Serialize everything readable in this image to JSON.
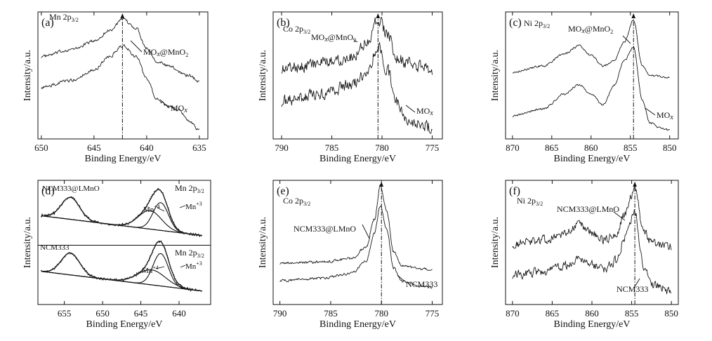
{
  "chart_data": [
    {
      "id": "a",
      "type": "line",
      "panel_label": "(a)",
      "title": "Mn 2p",
      "title_sub": "3/2",
      "xlabel": "Binding Energy/eV",
      "ylabel": "Intensity/a.u.",
      "xlim": [
        650,
        635
      ],
      "ylim": [
        0,
        1
      ],
      "xticks": [
        650,
        645,
        640,
        635
      ],
      "ref_line": 642.3,
      "series": [
        {
          "name": "MOx@MnO2",
          "label": "MO",
          "label_italic": "x",
          "label_tail": "@MnO",
          "label_sub": "2",
          "noise": 0.012,
          "base": [
            [
              650,
              0.66
            ],
            [
              647,
              0.72
            ],
            [
              645,
              0.79
            ],
            [
              643.5,
              0.88
            ],
            [
              642.3,
              0.97
            ],
            [
              641,
              0.9
            ],
            [
              640,
              0.73
            ],
            [
              639,
              0.62
            ],
            [
              638,
              0.58
            ],
            [
              636,
              0.5
            ],
            [
              635,
              0.45
            ]
          ]
        },
        {
          "name": "MOx",
          "label": "MO",
          "label_italic": "x",
          "label_tail": "",
          "label_sub": "",
          "noise": 0.012,
          "base": [
            [
              650,
              0.4
            ],
            [
              647,
              0.46
            ],
            [
              645,
              0.55
            ],
            [
              643.5,
              0.66
            ],
            [
              642.3,
              0.75
            ],
            [
              641,
              0.66
            ],
            [
              640,
              0.47
            ],
            [
              639,
              0.3
            ],
            [
              638,
              0.24
            ],
            [
              637,
              0.21
            ],
            [
              636,
              0.12
            ],
            [
              635,
              0.04
            ]
          ]
        }
      ]
    },
    {
      "id": "b",
      "type": "line",
      "panel_label": "(b)",
      "title": "Co 2p",
      "title_sub": "3/2",
      "xlabel": "Binding Energy/eV",
      "ylabel": "Intensity/a.u.",
      "xlim": [
        790,
        775
      ],
      "ylim": [
        0,
        1
      ],
      "xticks": [
        790,
        785,
        780,
        775
      ],
      "ref_line": 780.4,
      "series": [
        {
          "name": "MOx@MnO2",
          "label": "MO",
          "label_italic": "x",
          "label_tail": "@MnO",
          "label_sub": "2",
          "noise": 0.045,
          "base": [
            [
              790,
              0.56
            ],
            [
              786,
              0.6
            ],
            [
              783,
              0.66
            ],
            [
              781.5,
              0.78
            ],
            [
              780.4,
              0.98
            ],
            [
              779.5,
              0.85
            ],
            [
              778.5,
              0.65
            ],
            [
              777.5,
              0.6
            ],
            [
              776,
              0.57
            ],
            [
              775,
              0.55
            ]
          ]
        },
        {
          "name": "MOx",
          "label": "MO",
          "label_italic": "x",
          "label_tail": "",
          "label_sub": "",
          "noise": 0.045,
          "base": [
            [
              790,
              0.28
            ],
            [
              786,
              0.34
            ],
            [
              783,
              0.42
            ],
            [
              781.5,
              0.52
            ],
            [
              780.4,
              0.75
            ],
            [
              779.5,
              0.55
            ],
            [
              778.5,
              0.28
            ],
            [
              777.5,
              0.13
            ],
            [
              776,
              0.08
            ],
            [
              775,
              0.06
            ]
          ]
        }
      ]
    },
    {
      "id": "c",
      "type": "line",
      "panel_label": "(c)",
      "title": "Ni 2p",
      "title_sub": "3/2",
      "xlabel": "Binding Energy/eV",
      "ylabel": "Intensity/a.u.",
      "xlim": [
        870,
        850
      ],
      "ylim": [
        0,
        1
      ],
      "xticks": [
        870,
        865,
        860,
        855,
        850
      ],
      "ref_line": 854.6,
      "series": [
        {
          "name": "MOx@MnO2",
          "label": "MO",
          "label_italic": "x",
          "label_tail": "@MnO",
          "label_sub": "2",
          "noise": 0.008,
          "base": [
            [
              870,
              0.53
            ],
            [
              866,
              0.58
            ],
            [
              863.5,
              0.68
            ],
            [
              861.5,
              0.75
            ],
            [
              860,
              0.67
            ],
            [
              858.5,
              0.58
            ],
            [
              857,
              0.63
            ],
            [
              855.8,
              0.78
            ],
            [
              854.6,
              0.97
            ],
            [
              853.5,
              0.58
            ],
            [
              852.5,
              0.5
            ],
            [
              850,
              0.48
            ]
          ]
        },
        {
          "name": "MOx",
          "label": "MO",
          "label_italic": "x",
          "label_tail": "",
          "label_sub": "",
          "noise": 0.008,
          "base": [
            [
              870,
              0.16
            ],
            [
              866,
              0.22
            ],
            [
              863.5,
              0.34
            ],
            [
              861.5,
              0.42
            ],
            [
              860,
              0.34
            ],
            [
              858.5,
              0.25
            ],
            [
              857,
              0.42
            ],
            [
              855.8,
              0.62
            ],
            [
              854.6,
              0.74
            ],
            [
              853.5,
              0.3
            ],
            [
              852.5,
              0.1
            ],
            [
              851,
              0.05
            ],
            [
              850,
              0.04
            ]
          ]
        }
      ]
    },
    {
      "id": "d",
      "type": "line",
      "panel_label": "(d)",
      "title": "Mn 2p",
      "title_sub": "3/2",
      "xlabel": "Binding Energy/eV",
      "ylabel": "Intensity/a.u.",
      "xlim": [
        658,
        637
      ],
      "ylim": [
        0,
        1
      ],
      "xticks": [
        655,
        650,
        645,
        640
      ],
      "samples": [
        {
          "name": "NCM333@LMnO",
          "offset": 0.53,
          "bg_start": 0.2,
          "bg_end": 0.03,
          "peak1": {
            "center": 654.2,
            "height": 0.19,
            "width": 1.2
          },
          "mn4": {
            "center": 643.8,
            "height": 0.16,
            "width": 1.5
          },
          "mn3": {
            "center": 642.4,
            "height": 0.24,
            "width": 1.0
          }
        },
        {
          "name": "NCM333",
          "offset": 0.05,
          "bg_start": 0.2,
          "bg_end": 0.03,
          "peak1": {
            "center": 654.2,
            "height": 0.19,
            "width": 1.2
          },
          "mn4": {
            "center": 643.6,
            "height": 0.13,
            "width": 1.8
          },
          "mn3": {
            "center": 642.4,
            "height": 0.28,
            "width": 1.0
          }
        }
      ],
      "annotations": {
        "mn4": "Mn",
        "mn4_sup": "+4",
        "mn3": "Mn",
        "mn3_sup": "+3"
      }
    },
    {
      "id": "e",
      "type": "line",
      "panel_label": "(e)",
      "title": "Co 2p",
      "title_sub": "3/2",
      "xlabel": "Binding Energy/eV",
      "ylabel": "Intensity/a.u.",
      "xlim": [
        790,
        775
      ],
      "ylim": [
        0,
        1
      ],
      "xticks": [
        790,
        785,
        780,
        775
      ],
      "ref_line": 780.0,
      "series": [
        {
          "name": "NCM333@LMnO",
          "label": "NCM333@LMnO",
          "noise": 0.01,
          "base": [
            [
              790,
              0.32
            ],
            [
              786,
              0.33
            ],
            [
              783,
              0.36
            ],
            [
              781.5,
              0.46
            ],
            [
              780.7,
              0.7
            ],
            [
              780.1,
              0.99
            ],
            [
              779.5,
              0.78
            ],
            [
              778.8,
              0.42
            ],
            [
              778,
              0.3
            ],
            [
              776,
              0.27
            ],
            [
              775,
              0.27
            ]
          ]
        },
        {
          "name": "NCM333",
          "label": "NCM333",
          "noise": 0.01,
          "base": [
            [
              790,
              0.17
            ],
            [
              786,
              0.19
            ],
            [
              783,
              0.23
            ],
            [
              781.5,
              0.34
            ],
            [
              780.7,
              0.58
            ],
            [
              780.1,
              0.82
            ],
            [
              779.5,
              0.62
            ],
            [
              778.8,
              0.28
            ],
            [
              778,
              0.16
            ],
            [
              776,
              0.12
            ],
            [
              775,
              0.11
            ]
          ]
        }
      ]
    },
    {
      "id": "f",
      "type": "line",
      "panel_label": "(f)",
      "title": "Ni 2p",
      "title_sub": "3/2",
      "xlabel": "Binding Energy/eV",
      "ylabel": "Intensity/a.u.",
      "xlim": [
        870,
        850
      ],
      "ylim": [
        0,
        1
      ],
      "xticks": [
        870,
        865,
        860,
        855,
        850
      ],
      "ref_line": 854.6,
      "series": [
        {
          "name": "NCM333@LMnO",
          "label": "NCM333@LMnO",
          "noise": 0.035,
          "base": [
            [
              870,
              0.49
            ],
            [
              866,
              0.52
            ],
            [
              863.5,
              0.58
            ],
            [
              861.5,
              0.65
            ],
            [
              860,
              0.58
            ],
            [
              858.5,
              0.52
            ],
            [
              857,
              0.58
            ],
            [
              855.8,
              0.75
            ],
            [
              854.6,
              0.97
            ],
            [
              853.5,
              0.6
            ],
            [
              852.5,
              0.5
            ],
            [
              850,
              0.47
            ]
          ]
        },
        {
          "name": "NCM333",
          "label": "NCM333",
          "noise": 0.035,
          "base": [
            [
              870,
              0.22
            ],
            [
              866,
              0.25
            ],
            [
              863.5,
              0.3
            ],
            [
              861.5,
              0.37
            ],
            [
              860,
              0.31
            ],
            [
              858.5,
              0.26
            ],
            [
              857,
              0.34
            ],
            [
              855.8,
              0.55
            ],
            [
              854.6,
              0.76
            ],
            [
              853.5,
              0.3
            ],
            [
              852.5,
              0.13
            ],
            [
              850,
              0.08
            ]
          ]
        }
      ]
    }
  ]
}
